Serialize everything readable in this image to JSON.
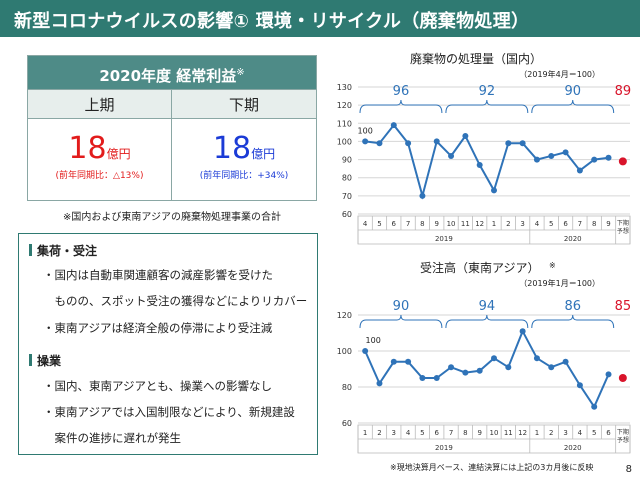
{
  "header": {
    "title": "新型コロナウイルスの影響① 環境・リサイクル（廃棄物処理）"
  },
  "profit_table": {
    "title": "2020年度 経常利益",
    "title_mark": "※",
    "h1": "上期",
    "h2": "下期",
    "h1_value": "18",
    "h1_unit": "億円",
    "h1_yoy": "(前年同期比：△13%)",
    "h2_value": "18",
    "h2_unit": "億円",
    "h2_yoy": "(前年同期比：+34%)",
    "note": "※国内および東南アジアの廃棄物処理事業の合計"
  },
  "summary": {
    "sec1_title": "集荷・受注",
    "sec1_lines": [
      "・国内は自動車関連顧客の減産影響を受けた",
      "　ものの、スポット受注の獲得などによりリカバー",
      "・東南アジアは経済全般の停滞により受注減"
    ],
    "sec2_title": "操業",
    "sec2_lines": [
      "・国内、東南アジアとも、操業への影響なし",
      "・東南アジアでは入国制限などにより、新規建設",
      "　案件の進捗に遅れが発生"
    ]
  },
  "page_number": "8",
  "footnote": "※現地決算月ベース、連結決算には上記の3カ月後に反映",
  "colors": {
    "header": "#2f7a72",
    "line": "#2f73b8",
    "forecast": "#d9142b",
    "bracket": "#2f73b8"
  },
  "chart_data": [
    {
      "type": "line",
      "title": "廃棄物の処理量（国内）",
      "subtitle": "（2019年4月＝100）",
      "x": [
        "4",
        "5",
        "6",
        "7",
        "8",
        "9",
        "10",
        "11",
        "12",
        "1",
        "2",
        "3",
        "4",
        "5",
        "6",
        "7",
        "8",
        "9"
      ],
      "year_labels": [
        "2019",
        "2020"
      ],
      "forecast_label": [
        "下期",
        "予想"
      ],
      "values": [
        100,
        99,
        109,
        99,
        70,
        100,
        92,
        103,
        87,
        73,
        99,
        99,
        90,
        92,
        94,
        84,
        90,
        91
      ],
      "forecast_value": 89,
      "start_label": "100",
      "half_year_averages": [
        96,
        92,
        90
      ],
      "ylim": [
        60,
        130
      ],
      "yticks": [
        60,
        70,
        80,
        90,
        100,
        110,
        120,
        130
      ],
      "grid": true
    },
    {
      "type": "line",
      "title": "受注高（東南アジア）",
      "title_mark": "※",
      "subtitle": "（2019年1月＝100）",
      "x": [
        "1",
        "2",
        "3",
        "4",
        "5",
        "6",
        "7",
        "8",
        "9",
        "10",
        "11",
        "12",
        "1",
        "2",
        "3",
        "4",
        "5",
        "6"
      ],
      "year_labels": [
        "2019",
        "2020"
      ],
      "forecast_label": [
        "下期",
        "予想"
      ],
      "values": [
        100,
        82,
        94,
        94,
        85,
        85,
        91,
        88,
        89,
        96,
        91,
        111,
        96,
        91,
        94,
        81,
        69,
        87
      ],
      "forecast_value": 85,
      "start_label": "100",
      "half_year_averages": [
        90,
        94,
        86
      ],
      "ylim": [
        60,
        120
      ],
      "yticks": [
        60,
        80,
        100,
        120
      ],
      "grid": true
    }
  ]
}
